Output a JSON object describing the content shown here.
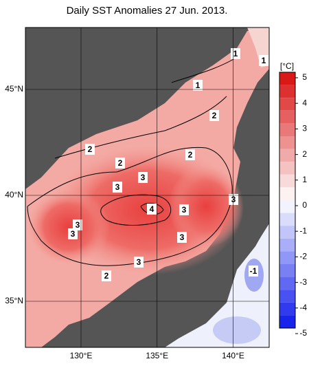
{
  "title": "Daily SST Anomalies 27 Jun. 2013.",
  "lon_ticks": [
    {
      "value": 130,
      "label": "130°E"
    },
    {
      "value": 135,
      "label": "135°E"
    },
    {
      "value": 140,
      "label": "140°E"
    }
  ],
  "lat_ticks": [
    {
      "value": 45,
      "label": "45°N"
    },
    {
      "value": 40,
      "label": "40°N"
    },
    {
      "value": 35,
      "label": "35°N"
    }
  ],
  "colorbar": {
    "unit": "[°C]",
    "ticks": [
      5,
      4,
      3,
      2,
      1,
      0,
      -1,
      -2,
      -3,
      -4,
      -5
    ]
  },
  "contour_labels": [
    1,
    1,
    1,
    2,
    2,
    2,
    2,
    3,
    3,
    3,
    4,
    3,
    3,
    3,
    3,
    3,
    2,
    -1
  ]
}
